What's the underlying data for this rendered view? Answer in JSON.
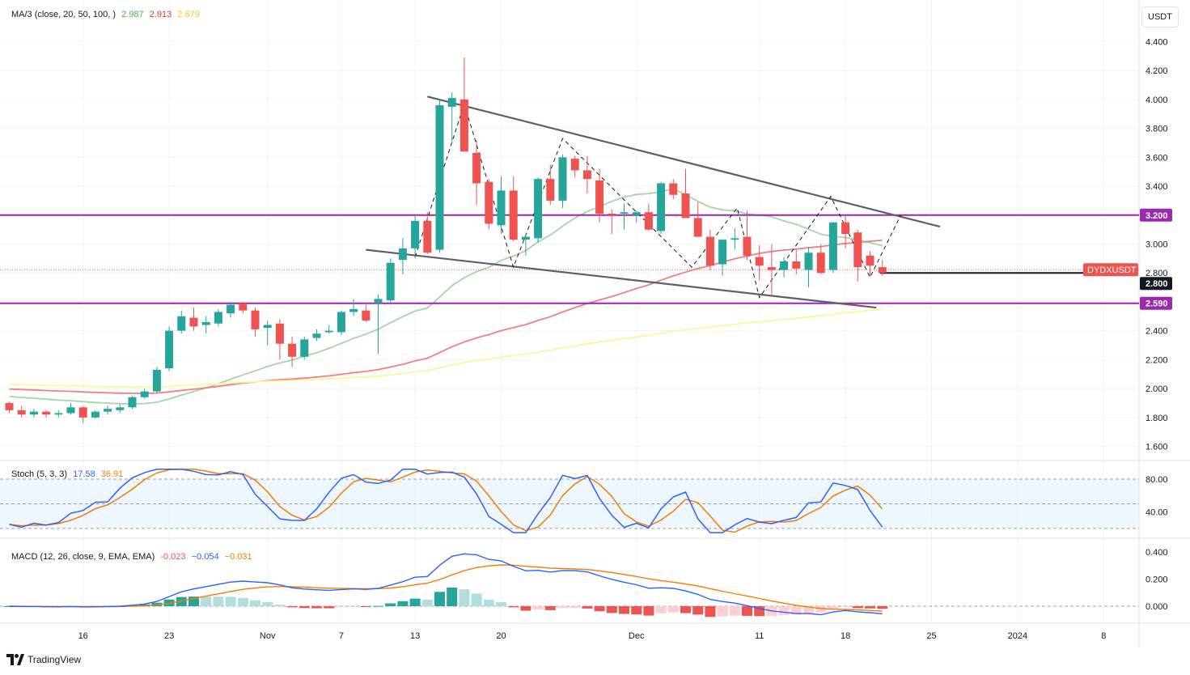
{
  "currency_button": "USDT",
  "symbol_tag": "DYDXUSDT",
  "footer_brand": "TradingView",
  "legends": {
    "ma": {
      "label": "MA/3 (close, 20, 50, 100, )",
      "v1": "2.987",
      "v2": "2.913",
      "v3": "2.679"
    },
    "stoch": {
      "label": "Stoch (5, 3, 3)",
      "v1": "17.58",
      "v2": "36.91"
    },
    "macd": {
      "label": "MACD (12, 26, close, 9, EMA, EMA)",
      "v1": "-0.023",
      "v2": "−0.054",
      "v3": "−0.031"
    }
  },
  "colors": {
    "up": "#26a69a",
    "down": "#ef5350",
    "ma20": "#a5d6a7",
    "ma50": "#f08080",
    "ma100": "#fff59d",
    "level": "#9c27b0",
    "trend": "#5d606b",
    "stochK": "#2962ff",
    "stochD": "#f57c00",
    "band": "#e3f2fd",
    "macdLine": "#2962ff",
    "signal": "#f57c00",
    "hGrowUp": "#26a69a",
    "hFallUp": "#b2dfdb",
    "hGrowDn": "#ef5350",
    "hFallDn": "#ffcdd2"
  },
  "chart_data": [
    {
      "type": "candlestick",
      "symbol": "DYDXUSDT",
      "last_price": 2.8,
      "ylim": [
        1.5,
        4.5
      ],
      "yticks": [
        "4.400",
        "4.200",
        "4.000",
        "3.800",
        "3.600",
        "3.400",
        "3.200",
        "3.000",
        "2.800",
        "2.600",
        "2.400",
        "2.200",
        "2.000",
        "1.800",
        "1.600"
      ],
      "xticks": [
        {
          "i": 6,
          "label": "16"
        },
        {
          "i": 13,
          "label": "23"
        },
        {
          "i": 21,
          "label": "Nov"
        },
        {
          "i": 27,
          "label": "7"
        },
        {
          "i": 33,
          "label": "13"
        },
        {
          "i": 40,
          "label": "20"
        },
        {
          "i": 51,
          "label": "Dec"
        },
        {
          "i": 61,
          "label": "11"
        },
        {
          "i": 68,
          "label": "18"
        },
        {
          "i": 75,
          "label": "25"
        },
        {
          "i": 82,
          "label": "2024"
        },
        {
          "i": 89,
          "label": "8"
        }
      ],
      "levels": [
        {
          "value": 3.2,
          "label": "3.200"
        },
        {
          "value": 2.59,
          "label": "2.590"
        }
      ],
      "candles": [
        [
          1.9,
          1.91,
          1.83,
          1.85
        ],
        [
          1.85,
          1.88,
          1.8,
          1.82
        ],
        [
          1.82,
          1.86,
          1.8,
          1.84
        ],
        [
          1.84,
          1.85,
          1.8,
          1.82
        ],
        [
          1.82,
          1.85,
          1.8,
          1.83
        ],
        [
          1.83,
          1.9,
          1.82,
          1.87
        ],
        [
          1.87,
          1.88,
          1.76,
          1.8
        ],
        [
          1.8,
          1.85,
          1.79,
          1.84
        ],
        [
          1.84,
          1.88,
          1.82,
          1.86
        ],
        [
          1.85,
          1.89,
          1.83,
          1.87
        ],
        [
          1.87,
          1.95,
          1.86,
          1.94
        ],
        [
          1.94,
          2.0,
          1.93,
          1.98
        ],
        [
          1.98,
          2.15,
          1.97,
          2.13
        ],
        [
          2.14,
          2.43,
          2.12,
          2.4
        ],
        [
          2.4,
          2.54,
          2.38,
          2.5
        ],
        [
          2.49,
          2.56,
          2.4,
          2.43
        ],
        [
          2.44,
          2.5,
          2.38,
          2.46
        ],
        [
          2.45,
          2.55,
          2.43,
          2.53
        ],
        [
          2.52,
          2.6,
          2.49,
          2.58
        ],
        [
          2.59,
          2.6,
          2.52,
          2.54
        ],
        [
          2.54,
          2.56,
          2.36,
          2.41
        ],
        [
          2.42,
          2.47,
          2.3,
          2.44
        ],
        [
          2.45,
          2.48,
          2.2,
          2.31
        ],
        [
          2.31,
          2.36,
          2.15,
          2.22
        ],
        [
          2.22,
          2.36,
          2.2,
          2.34
        ],
        [
          2.35,
          2.41,
          2.33,
          2.38
        ],
        [
          2.39,
          2.44,
          2.38,
          2.4
        ],
        [
          2.39,
          2.54,
          2.37,
          2.53
        ],
        [
          2.53,
          2.62,
          2.5,
          2.55
        ],
        [
          2.54,
          2.58,
          2.46,
          2.47
        ],
        [
          2.59,
          2.65,
          2.24,
          2.62
        ],
        [
          2.61,
          2.9,
          2.58,
          2.87
        ],
        [
          2.89,
          3.04,
          2.79,
          2.97
        ],
        [
          2.97,
          3.2,
          2.9,
          3.16
        ],
        [
          3.16,
          3.22,
          2.93,
          2.94
        ],
        [
          2.96,
          4.0,
          2.94,
          3.96
        ],
        [
          3.95,
          4.05,
          3.7,
          4.01
        ],
        [
          4.0,
          4.29,
          3.65,
          3.64
        ],
        [
          3.63,
          3.72,
          3.27,
          3.42
        ],
        [
          3.43,
          3.45,
          3.1,
          3.14
        ],
        [
          3.13,
          3.47,
          3.07,
          3.37
        ],
        [
          3.37,
          3.47,
          3.02,
          3.03
        ],
        [
          3.03,
          3.07,
          2.92,
          3.05
        ],
        [
          3.04,
          3.46,
          3.01,
          3.45
        ],
        [
          3.45,
          3.55,
          3.27,
          3.3
        ],
        [
          3.3,
          3.62,
          3.25,
          3.6
        ],
        [
          3.59,
          3.61,
          3.46,
          3.51
        ],
        [
          3.51,
          3.61,
          3.35,
          3.45
        ],
        [
          3.44,
          3.52,
          3.15,
          3.21
        ],
        [
          3.21,
          3.24,
          3.07,
          3.2
        ],
        [
          3.21,
          3.28,
          3.1,
          3.22
        ],
        [
          3.2,
          3.23,
          3.15,
          3.22
        ],
        [
          3.22,
          3.28,
          3.09,
          3.1
        ],
        [
          3.09,
          3.43,
          3.07,
          3.42
        ],
        [
          3.42,
          3.45,
          3.31,
          3.34
        ],
        [
          3.35,
          3.52,
          3.19,
          3.18
        ],
        [
          3.18,
          3.29,
          3.05,
          3.05
        ],
        [
          3.05,
          3.1,
          2.82,
          2.85
        ],
        [
          2.86,
          3.03,
          2.78,
          3.03
        ],
        [
          3.03,
          3.11,
          2.96,
          3.04
        ],
        [
          3.05,
          3.23,
          2.89,
          2.92
        ],
        [
          2.91,
          2.99,
          2.75,
          2.85
        ],
        [
          2.84,
          3.0,
          2.65,
          2.82
        ],
        [
          2.82,
          2.91,
          2.77,
          2.88
        ],
        [
          2.88,
          2.96,
          2.79,
          2.83
        ],
        [
          2.82,
          2.98,
          2.7,
          2.94
        ],
        [
          2.94,
          3.0,
          2.79,
          2.8
        ],
        [
          2.82,
          3.15,
          2.8,
          3.15
        ],
        [
          3.15,
          3.2,
          2.97,
          3.07
        ],
        [
          3.08,
          3.1,
          2.74,
          2.84
        ],
        [
          2.92,
          2.95,
          2.78,
          2.85
        ],
        [
          2.84,
          2.89,
          2.78,
          2.8
        ]
      ]
    },
    {
      "type": "line",
      "name": "Stoch (5, 3, 3)",
      "ylim": [
        0,
        100
      ],
      "yticks": [
        "80.00",
        "40.00"
      ],
      "band": [
        20,
        80
      ]
    },
    {
      "type": "bar",
      "name": "MACD (12, 26, close, 9, EMA, EMA)",
      "ylim": [
        -0.05,
        0.42
      ],
      "yticks": [
        "0.400",
        "0.200",
        "0.000"
      ]
    }
  ]
}
